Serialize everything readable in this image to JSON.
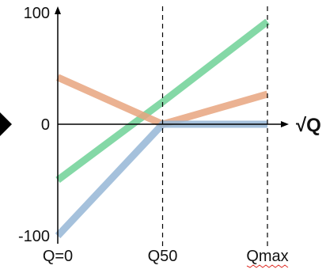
{
  "chart_data": {
    "type": "line",
    "title": "",
    "xlabel": "√Q",
    "ylabel": "",
    "x_tick_labels": [
      "Q=0",
      "Q50",
      "Qmax"
    ],
    "x": [
      0,
      1,
      2
    ],
    "xlim": [
      0,
      2
    ],
    "y_ticks": [
      100,
      0,
      -100
    ],
    "y_tick_labels": [
      "100",
      "0",
      "-100"
    ],
    "ylim": [
      -100,
      100
    ],
    "grid": false,
    "reference_lines": [
      {
        "axis": "x",
        "value": 1,
        "style": "dashed"
      },
      {
        "axis": "x",
        "value": 2,
        "style": "dashed"
      }
    ],
    "series": [
      {
        "color": "#6fd196",
        "values": [
          -50,
          20,
          92
        ]
      },
      {
        "color": "#e8a47f",
        "values": [
          42,
          0,
          27
        ]
      },
      {
        "color": "#95b6d6",
        "values": [
          -100,
          0,
          0
        ]
      }
    ],
    "arrow_marker_color": "#000000"
  }
}
